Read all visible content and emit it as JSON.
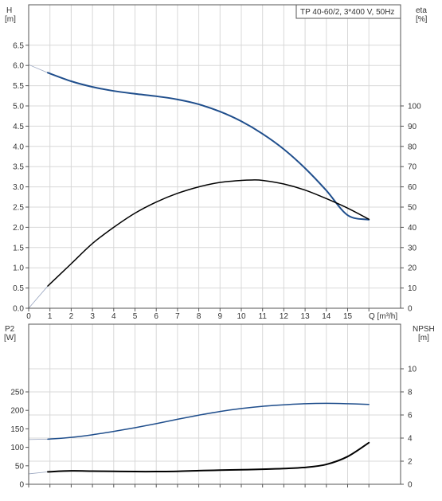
{
  "title": "TP 40-60/2, 3*400 V, 50Hz",
  "colors": {
    "blue": "#1f4e8c",
    "black": "#000000",
    "grid": "#d8d8d8",
    "frame": "#555555",
    "faint": "#9aa6c0"
  },
  "chart_data": [
    {
      "type": "line",
      "panel": "top",
      "title": "TP 40-60/2, 3*400 V, 50Hz",
      "xlabel": "Q [m³/h]",
      "ylabel_left": [
        "H",
        "[m]"
      ],
      "ylabel_right": [
        "eta",
        "[%]"
      ],
      "xlim": [
        0,
        17
      ],
      "ylim_left": [
        0,
        7
      ],
      "ylim_right": [
        0,
        140
      ],
      "x_ticks": [
        0,
        1,
        2,
        3,
        4,
        5,
        6,
        7,
        8,
        9,
        10,
        11,
        12,
        13,
        14,
        15
      ],
      "x_tick_labels": [
        "0",
        "1",
        "2",
        "3",
        "4",
        "5",
        "6",
        "7",
        "8",
        "9",
        "10",
        "11",
        "12",
        "13",
        "14",
        "15"
      ],
      "x_unit_label": "Q [m³/h]",
      "y_left_ticks": [
        0,
        0.5,
        1,
        1.5,
        2,
        2.5,
        3,
        3.5,
        4,
        4.5,
        5,
        5.5,
        6,
        6.5
      ],
      "y_left_tick_labels": [
        "0.0",
        "0.5",
        "1.0",
        "1.5",
        "2.0",
        "2.5",
        "3.0",
        "3.5",
        "4.0",
        "4.5",
        "5.0",
        "5.5",
        "6.0",
        "6.5"
      ],
      "y_right_ticks": [
        0,
        10,
        20,
        30,
        40,
        50,
        60,
        70,
        80,
        90,
        100
      ],
      "y_right_tick_labels": [
        "0",
        "10",
        "20",
        "30",
        "40",
        "50",
        "60",
        "70",
        "80",
        "90",
        "100"
      ],
      "grid": true,
      "series": [
        {
          "axis": "left",
          "color": "#9aa6c0",
          "width": 0.8,
          "points": [
            [
              0,
              6.02
            ],
            [
              0.9,
              5.82
            ]
          ]
        },
        {
          "axis": "left",
          "color": "#1f4e8c",
          "width": 2,
          "points": [
            [
              0.9,
              5.82
            ],
            [
              2,
              5.61
            ],
            [
              3,
              5.47
            ],
            [
              4,
              5.37
            ],
            [
              5,
              5.3
            ],
            [
              6,
              5.24
            ],
            [
              7,
              5.16
            ],
            [
              8,
              5.04
            ],
            [
              9,
              4.86
            ],
            [
              10,
              4.62
            ],
            [
              11,
              4.31
            ],
            [
              12,
              3.93
            ],
            [
              13,
              3.46
            ],
            [
              14,
              2.91
            ],
            [
              15,
              2.3
            ],
            [
              16,
              2.19
            ]
          ]
        },
        {
          "axis": "right",
          "color": "#9aa6c0",
          "width": 0.8,
          "points": [
            [
              0,
              0
            ],
            [
              0.9,
              11
            ]
          ]
        },
        {
          "axis": "right",
          "color": "#000000",
          "width": 1.5,
          "points": [
            [
              0.9,
              11
            ],
            [
              2,
              22
            ],
            [
              3,
              32
            ],
            [
              4,
              40
            ],
            [
              5,
              47
            ],
            [
              6,
              52.5
            ],
            [
              7,
              56.8
            ],
            [
              8,
              60
            ],
            [
              9,
              62.2
            ],
            [
              10,
              63.2
            ],
            [
              10.5,
              63.4
            ],
            [
              11,
              63.2
            ],
            [
              12,
              61.4
            ],
            [
              13,
              58.4
            ],
            [
              14,
              54.2
            ],
            [
              15,
              49.5
            ],
            [
              16,
              44
            ]
          ]
        }
      ]
    },
    {
      "type": "line",
      "panel": "bottom",
      "ylabel_left": [
        "P2",
        "[W]"
      ],
      "ylabel_right": [
        "NPSH",
        "[m]"
      ],
      "xlim": [
        0,
        17
      ],
      "ylim_left": [
        0,
        300
      ],
      "ylim_right": [
        0,
        12
      ],
      "y_left_ticks": [
        0,
        50,
        100,
        150,
        200,
        250
      ],
      "y_left_tick_labels": [
        "0",
        "50",
        "100",
        "150",
        "200",
        "250"
      ],
      "y_right_ticks": [
        0,
        2,
        4,
        6,
        8,
        10
      ],
      "y_right_tick_labels": [
        "0",
        "2",
        "4",
        "6",
        "8",
        "10"
      ],
      "grid": true,
      "series": [
        {
          "axis": "left",
          "color": "#9aa6c0",
          "width": 0.8,
          "points": [
            [
              0,
              121
            ],
            [
              0.9,
              122
            ]
          ]
        },
        {
          "axis": "left",
          "color": "#1f4e8c",
          "width": 1.5,
          "points": [
            [
              0.9,
              122
            ],
            [
              2,
              127
            ],
            [
              3,
              134
            ],
            [
              4,
              143
            ],
            [
              5,
              153
            ],
            [
              6,
              164
            ],
            [
              7,
              176
            ],
            [
              8,
              187
            ],
            [
              9,
              197
            ],
            [
              10,
              205
            ],
            [
              11,
              211
            ],
            [
              12,
              215
            ],
            [
              13,
              218
            ],
            [
              14,
              219
            ],
            [
              15,
              218
            ],
            [
              16,
              216
            ]
          ]
        },
        {
          "axis": "right",
          "color": "#9aa6c0",
          "width": 0.8,
          "points": [
            [
              0,
              0.9
            ],
            [
              0.9,
              1.08
            ]
          ]
        },
        {
          "axis": "right",
          "color": "#000000",
          "width": 2,
          "points": [
            [
              0.9,
              1.08
            ],
            [
              2,
              1.16
            ],
            [
              3,
              1.14
            ],
            [
              4,
              1.12
            ],
            [
              5,
              1.1
            ],
            [
              6,
              1.1
            ],
            [
              7,
              1.12
            ],
            [
              8,
              1.18
            ],
            [
              9,
              1.22
            ],
            [
              10,
              1.26
            ],
            [
              11,
              1.3
            ],
            [
              12,
              1.36
            ],
            [
              13,
              1.46
            ],
            [
              14,
              1.72
            ],
            [
              15,
              2.4
            ],
            [
              16,
              3.6
            ]
          ]
        }
      ]
    }
  ]
}
